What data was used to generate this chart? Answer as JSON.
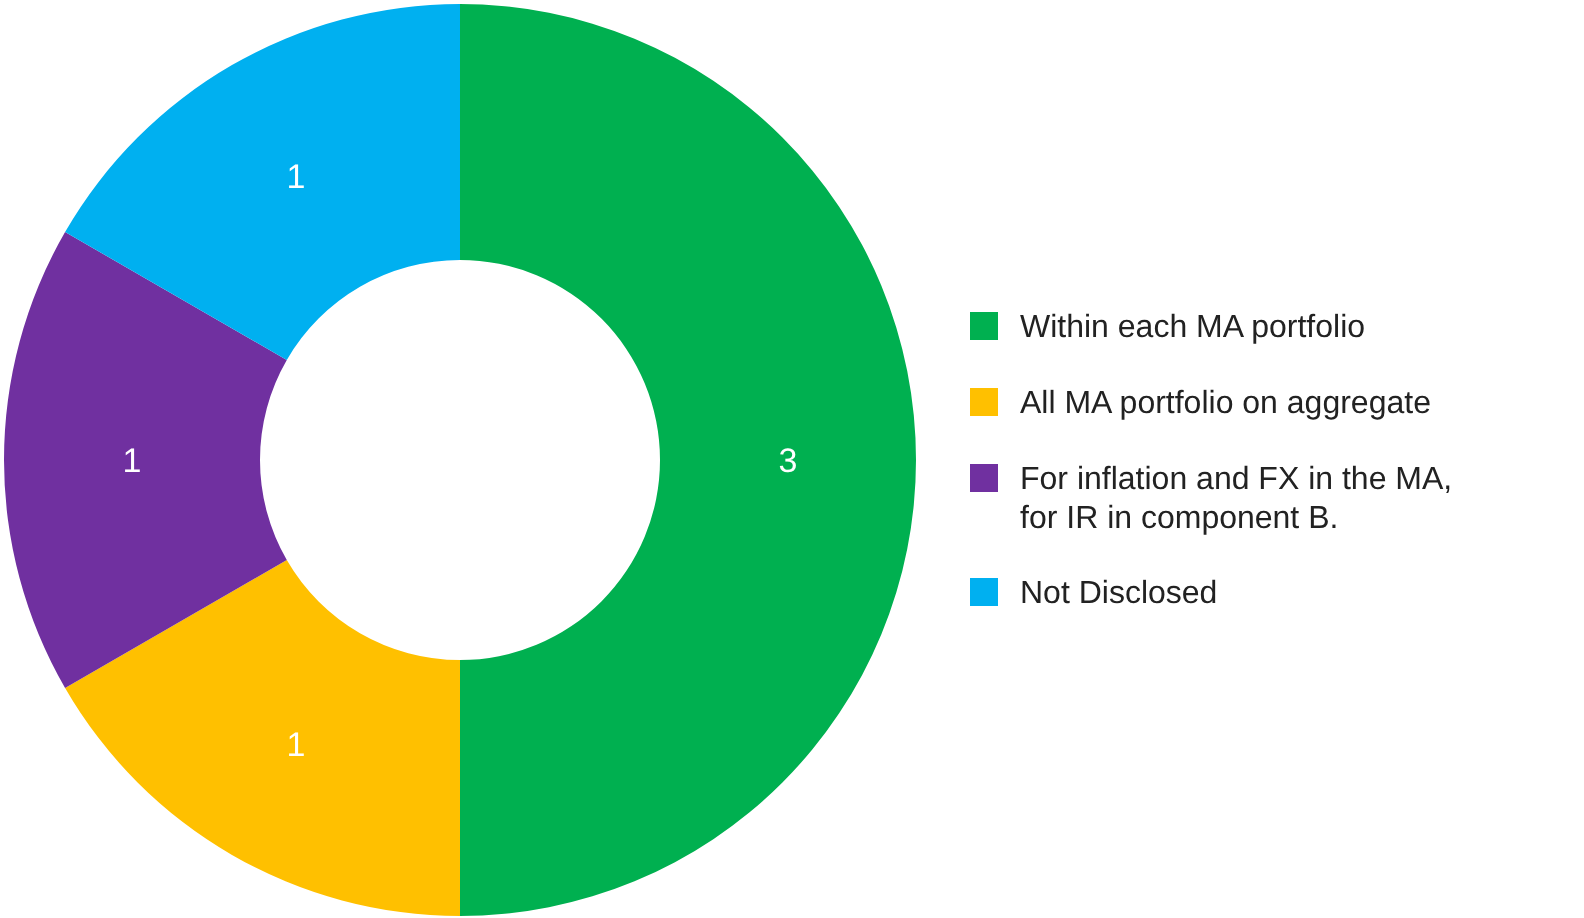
{
  "chart_data": {
    "type": "donut",
    "categories": [
      "Within each MA portfolio",
      "All MA portfolio on aggregate",
      "For inflation and FX in the MA, for IR in component B.",
      "Not Disclosed"
    ],
    "values": [
      3,
      1,
      1,
      1
    ],
    "colors": [
      "#00b050",
      "#ffc000",
      "#7030a0",
      "#00b0f0"
    ],
    "data_labels": true,
    "legend": "right"
  }
}
